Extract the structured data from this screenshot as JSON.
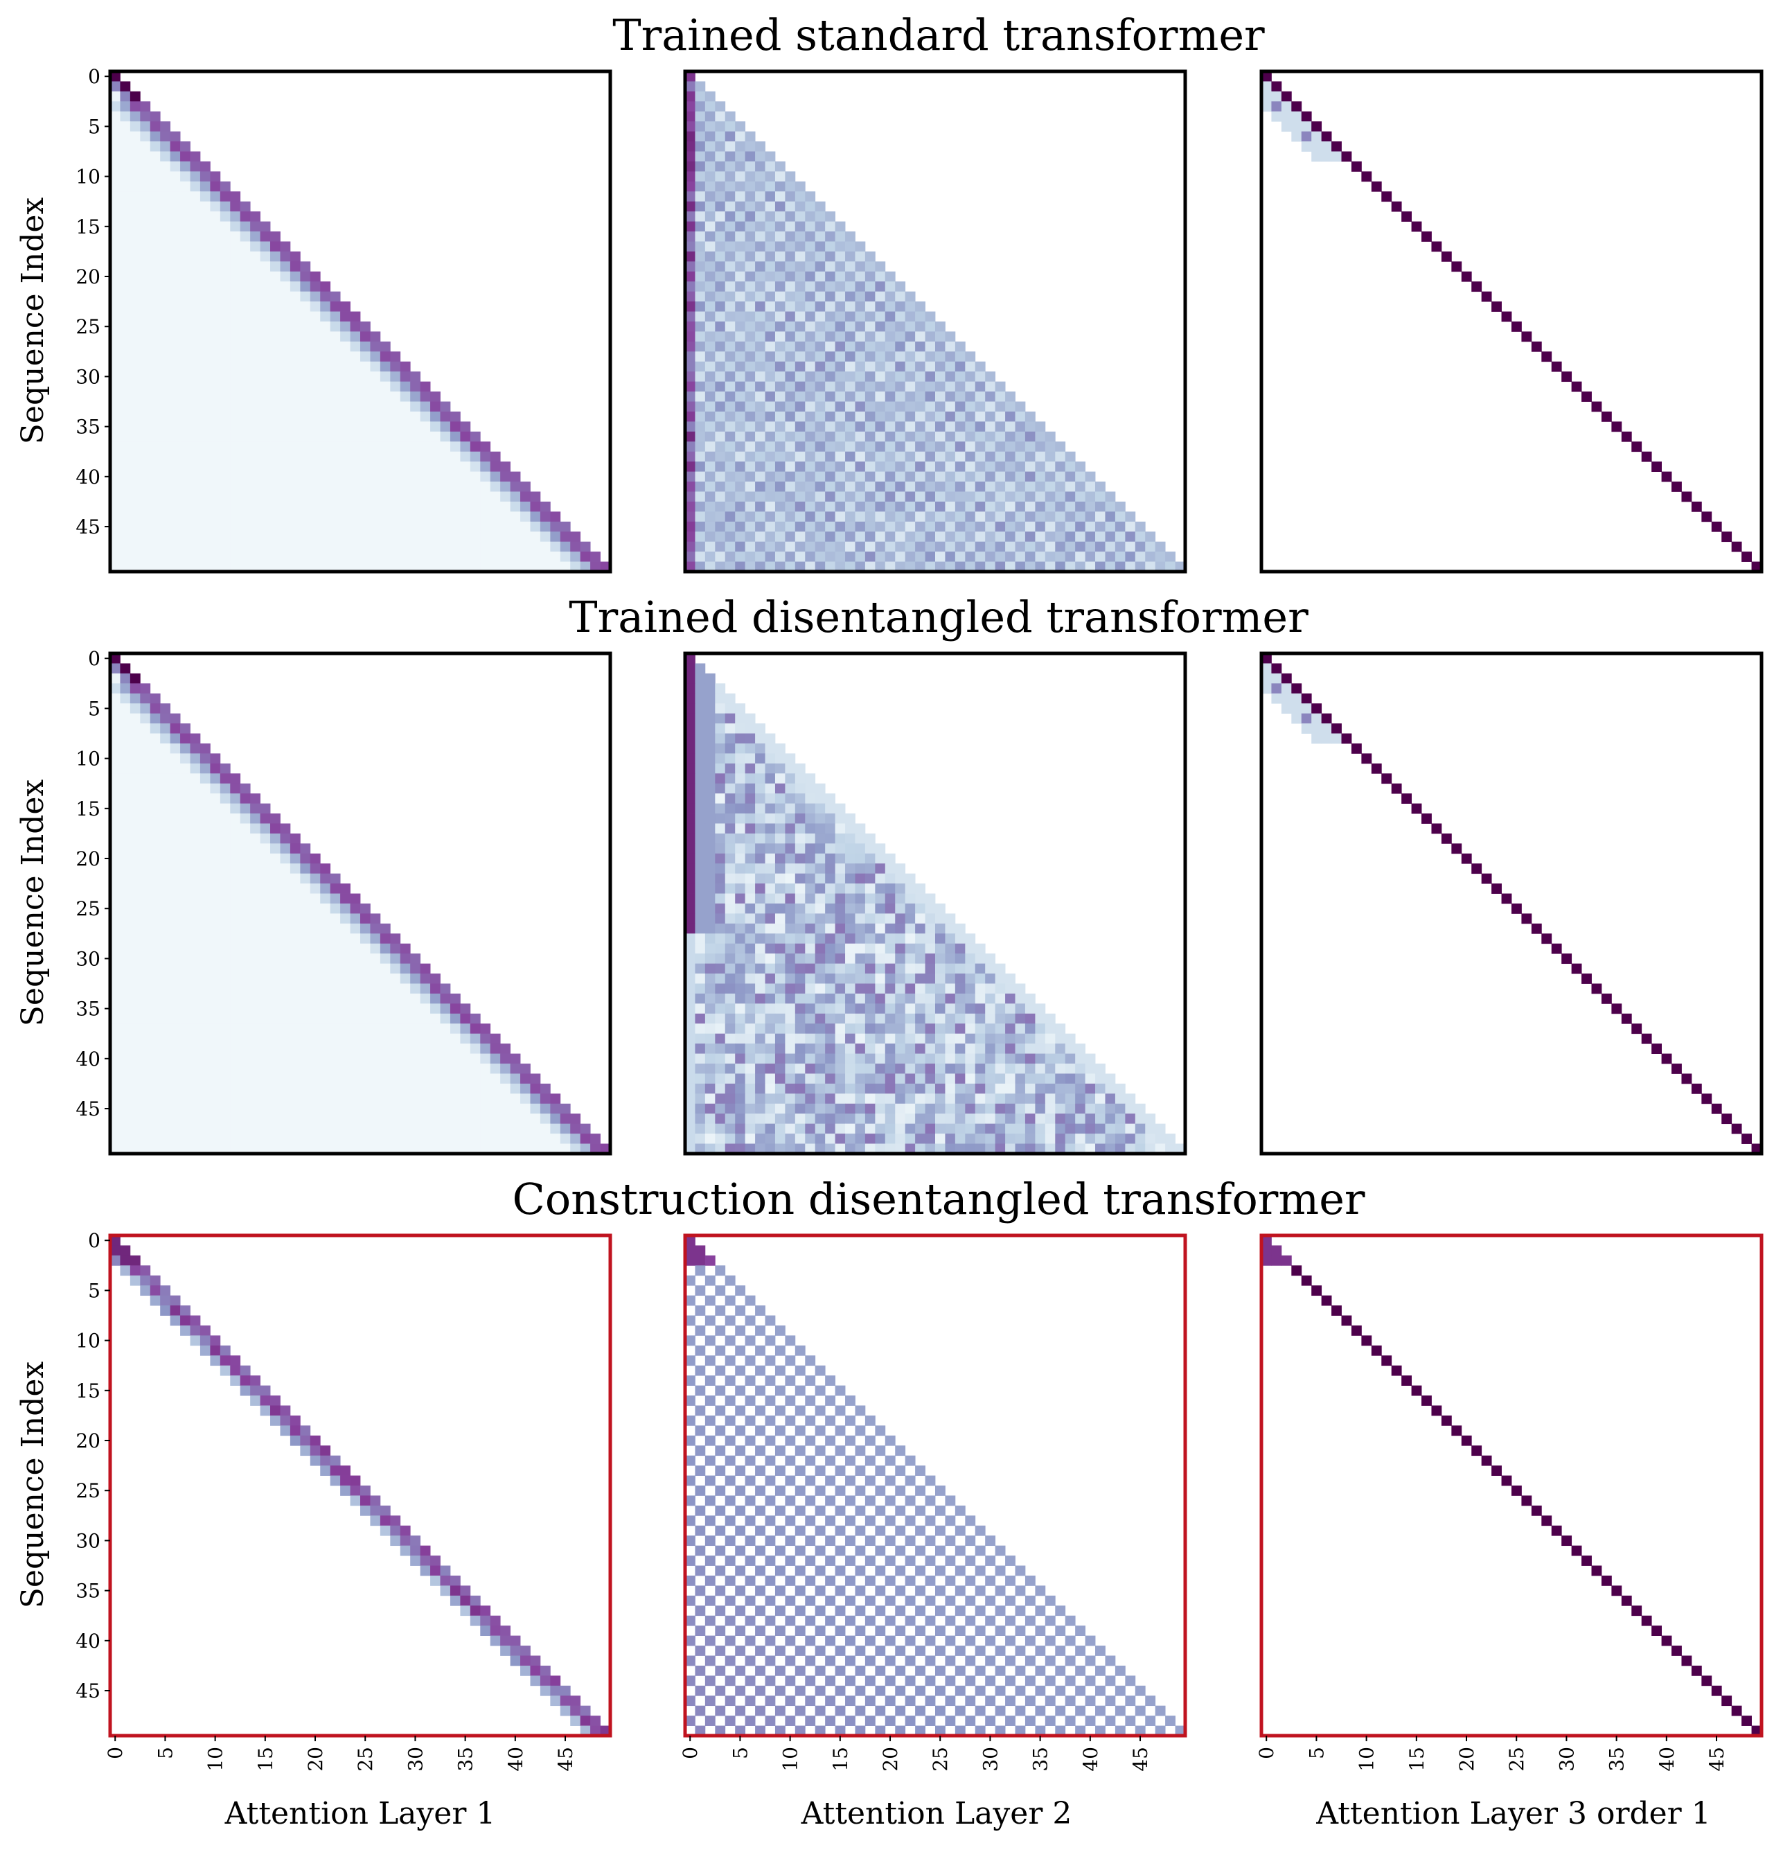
{
  "figure": {
    "row_titles": [
      "Trained standard transformer",
      "Trained disentangled transformer",
      "Construction disentangled transformer"
    ],
    "column_xlabels": [
      "Attention Layer 1",
      "Attention Layer 2",
      "Attention Layer 3 order 1"
    ],
    "ylabel": "Sequence Index",
    "colors": {
      "colormap": [
        "#f7fcfd",
        "#bfd3e6",
        "#8c96c6",
        "#88419d",
        "#4d004b"
      ],
      "construction_frame": "#c0131f",
      "trained_frame": "#000000"
    }
  },
  "chart_data": [
    {
      "type": "heatmap",
      "title": "Trained standard transformer",
      "row": 0,
      "col": 0,
      "pattern": "diag_band_soft",
      "xlabel": "",
      "ylabel": "Sequence Index",
      "size": 50,
      "ylim": [
        0,
        49
      ],
      "y_ticks": [
        0,
        5,
        10,
        15,
        20,
        25,
        30,
        35,
        40,
        45
      ],
      "x_ticks": [],
      "framed_red": false
    },
    {
      "type": "heatmap",
      "title": "",
      "row": 0,
      "col": 1,
      "pattern": "checker_noisy",
      "xlabel": "",
      "ylabel": "",
      "size": 50,
      "ylim": [
        0,
        49
      ],
      "y_ticks": [],
      "x_ticks": [],
      "framed_red": false
    },
    {
      "type": "heatmap",
      "title": "",
      "row": 0,
      "col": 2,
      "pattern": "diag_sharp",
      "xlabel": "",
      "ylabel": "",
      "size": 50,
      "ylim": [
        0,
        49
      ],
      "y_ticks": [],
      "x_ticks": [],
      "framed_red": false
    },
    {
      "type": "heatmap",
      "title": "Trained disentangled transformer",
      "row": 1,
      "col": 0,
      "pattern": "diag_band_soft",
      "xlabel": "",
      "ylabel": "Sequence Index",
      "size": 50,
      "ylim": [
        0,
        49
      ],
      "y_ticks": [
        0,
        5,
        10,
        15,
        20,
        25,
        30,
        35,
        40,
        45
      ],
      "x_ticks": [],
      "framed_red": false
    },
    {
      "type": "heatmap",
      "title": "",
      "row": 1,
      "col": 1,
      "pattern": "lower_noisy_first_col",
      "xlabel": "",
      "ylabel": "",
      "size": 50,
      "ylim": [
        0,
        49
      ],
      "y_ticks": [],
      "x_ticks": [],
      "framed_red": false
    },
    {
      "type": "heatmap",
      "title": "",
      "row": 1,
      "col": 2,
      "pattern": "diag_sharp",
      "xlabel": "",
      "ylabel": "",
      "size": 50,
      "ylim": [
        0,
        49
      ],
      "y_ticks": [],
      "x_ticks": [],
      "framed_red": false
    },
    {
      "type": "heatmap",
      "title": "Construction disentangled transformer",
      "row": 2,
      "col": 0,
      "pattern": "diag_band_construct",
      "xlabel": "Attention Layer 1",
      "ylabel": "Sequence Index",
      "size": 50,
      "ylim": [
        0,
        49
      ],
      "y_ticks": [
        0,
        5,
        10,
        15,
        20,
        25,
        30,
        35,
        40,
        45
      ],
      "x_ticks": [
        0,
        5,
        10,
        15,
        20,
        25,
        30,
        35,
        40,
        45
      ],
      "framed_red": true
    },
    {
      "type": "heatmap",
      "title": "",
      "row": 2,
      "col": 1,
      "pattern": "checker_clean",
      "xlabel": "Attention Layer 2",
      "ylabel": "",
      "size": 50,
      "ylim": [
        0,
        49
      ],
      "y_ticks": [],
      "x_ticks": [
        0,
        5,
        10,
        15,
        20,
        25,
        30,
        35,
        40,
        45
      ],
      "framed_red": true
    },
    {
      "type": "heatmap",
      "title": "",
      "row": 2,
      "col": 2,
      "pattern": "diag_sharp_construct",
      "xlabel": "Attention Layer 3 order 1",
      "ylabel": "",
      "size": 50,
      "ylim": [
        0,
        49
      ],
      "y_ticks": [],
      "x_ticks": [
        0,
        5,
        10,
        15,
        20,
        25,
        30,
        35,
        40,
        45
      ],
      "framed_red": true
    }
  ]
}
